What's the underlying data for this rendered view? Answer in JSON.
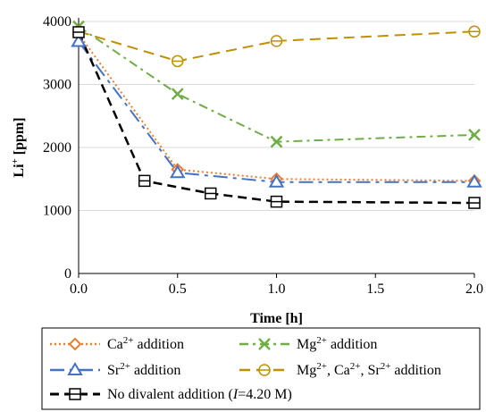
{
  "chart_data": {
    "type": "line",
    "title": "",
    "xlabel": "Time [h]",
    "ylabel_main": "Li",
    "ylabel_sup": "+",
    "ylabel_unit": " [ppm]",
    "xlim": [
      0,
      2
    ],
    "ylim": [
      0,
      4000
    ],
    "xticks": [
      {
        "v": 0.0,
        "label": "0.0"
      },
      {
        "v": 0.5,
        "label": "0.5"
      },
      {
        "v": 1.0,
        "label": "1.0"
      },
      {
        "v": 1.5,
        "label": "1.5"
      },
      {
        "v": 2.0,
        "label": "2.0"
      }
    ],
    "yticks": [
      {
        "v": 0,
        "label": "0"
      },
      {
        "v": 1000,
        "label": "1000"
      },
      {
        "v": 2000,
        "label": "2000"
      },
      {
        "v": 3000,
        "label": "3000"
      },
      {
        "v": 4000,
        "label": "4000"
      }
    ],
    "grid": "horizontal",
    "legend_position": "below",
    "series": [
      {
        "key": "ca",
        "parts": [
          [
            "Ca",
            "2+",
            " addition"
          ]
        ],
        "color": "#ED7D31",
        "dash": "dotted",
        "marker": "diamond",
        "points": [
          [
            0,
            3800
          ],
          [
            0.5,
            1650
          ],
          [
            1.0,
            1500
          ],
          [
            2.0,
            1470
          ]
        ]
      },
      {
        "key": "mg",
        "parts": [
          [
            "Mg",
            "2+",
            " addition"
          ]
        ],
        "color": "#70AD47",
        "dash": "dashdot",
        "marker": "x",
        "points": [
          [
            0,
            3920
          ],
          [
            0.5,
            2850
          ],
          [
            1.0,
            2090
          ],
          [
            2.0,
            2200
          ]
        ]
      },
      {
        "key": "sr",
        "parts": [
          [
            "Sr",
            "2+",
            " addition"
          ]
        ],
        "color": "#4472C4",
        "dash": "longdashdot",
        "marker": "triangle",
        "points": [
          [
            0,
            3680
          ],
          [
            0.5,
            1600
          ],
          [
            1.0,
            1450
          ],
          [
            2.0,
            1450
          ]
        ]
      },
      {
        "key": "all",
        "parts": [
          [
            "Mg",
            "2+",
            ", "
          ],
          [
            "Ca",
            "2+",
            ", "
          ],
          [
            "Sr",
            "2+",
            " addition"
          ]
        ],
        "color": "#BF9000",
        "dash": "dashed",
        "marker": "circle-bar",
        "points": [
          [
            0,
            3840
          ],
          [
            0.5,
            3370
          ],
          [
            1.0,
            3690
          ],
          [
            2.0,
            3840
          ]
        ]
      },
      {
        "key": "none",
        "label_prefix": "No divalent addition (",
        "label_italic": "I",
        "label_suffix": "=4.20 M)",
        "color": "#000000",
        "dash": "dashed-bold",
        "marker": "square",
        "points": [
          [
            0,
            3830
          ],
          [
            0.333,
            1470
          ],
          [
            0.667,
            1270
          ],
          [
            1.0,
            1140
          ],
          [
            2.0,
            1120
          ]
        ]
      }
    ]
  }
}
